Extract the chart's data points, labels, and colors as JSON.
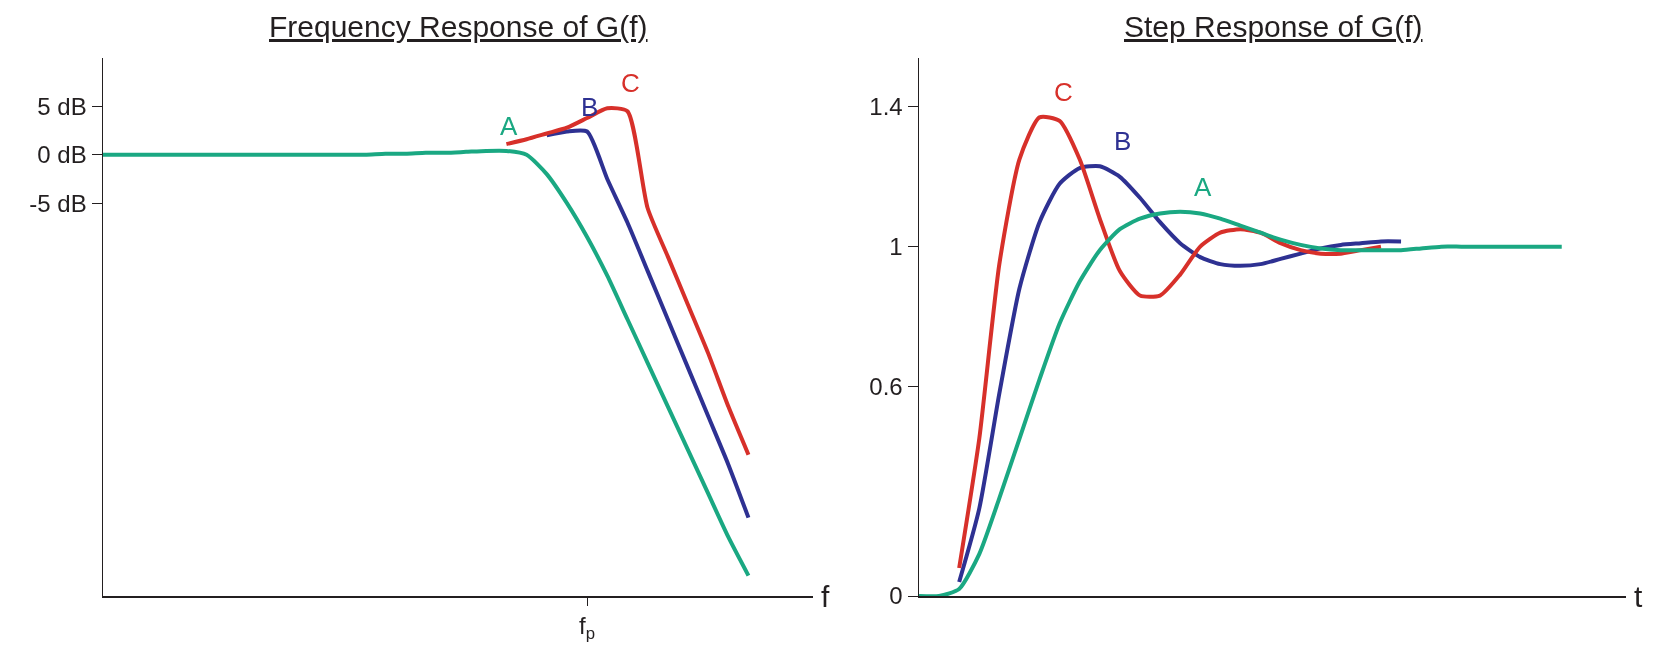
{
  "chart_data": [
    {
      "type": "line",
      "title": "Frequency Response of G(f)",
      "xlabel": "f",
      "categories": [
        null,
        null,
        null,
        null,
        null,
        null,
        null,
        null,
        null,
        null,
        null,
        null,
        null,
        null,
        null,
        null,
        null,
        null,
        null,
        null,
        null,
        null,
        null,
        null,
        "f$_{p}$",
        null,
        null,
        null,
        null,
        null,
        null,
        null,
        null
      ],
      "ylim": [
        -45.6,
        10
      ],
      "yticks": [
        {
          "value": 5,
          "label": "5 dB"
        },
        {
          "value": 0,
          "label": "0 dB"
        },
        {
          "value": -5,
          "label": "-5 dB"
        }
      ],
      "grid": false,
      "legend": false,
      "series": [
        {
          "name": "B",
          "color": "#2e3192",
          "values": [
            null,
            null,
            null,
            null,
            null,
            null,
            null,
            null,
            null,
            null,
            null,
            null,
            null,
            null,
            null,
            null,
            null,
            null,
            null,
            null,
            null,
            null,
            2,
            2.4,
            2.4,
            -2.5,
            -7,
            -12,
            -17,
            -22,
            -27,
            -32,
            -37.5
          ]
        },
        {
          "name": "C",
          "color": "#d7302a",
          "values": [
            null,
            null,
            null,
            null,
            null,
            null,
            null,
            null,
            null,
            null,
            null,
            null,
            null,
            null,
            null,
            null,
            null,
            null,
            null,
            null,
            1.1,
            1.6,
            2.2,
            2.8,
            3.8,
            4.8,
            4.5,
            -5.5,
            -10.5,
            -15.5,
            -20.5,
            -26,
            -31
          ]
        },
        {
          "name": "A",
          "color": "#1aa882",
          "values": [
            0,
            0,
            0,
            0,
            0,
            0,
            0,
            0,
            0,
            0,
            0,
            0,
            0,
            0,
            0.1,
            0.1,
            0.2,
            0.2,
            0.3,
            0.4,
            0.4,
            0,
            -2,
            -5,
            -8.5,
            -12.5,
            -17,
            -21.5,
            -26,
            -30.5,
            -35,
            -39.5,
            -43.5
          ]
        }
      ]
    },
    {
      "type": "line",
      "title": "Step Response of G(f)",
      "xlabel": "t",
      "categories": [
        null,
        null,
        null,
        null,
        null,
        null,
        null,
        null,
        null,
        null,
        null,
        null,
        null,
        null,
        null,
        null,
        null,
        null,
        null,
        null,
        null,
        null,
        null,
        null,
        null,
        null,
        null,
        null,
        null,
        null,
        null,
        null,
        null
      ],
      "ylim": [
        0,
        1.54
      ],
      "yticks": [
        0,
        0.6,
        1,
        1.4
      ],
      "grid": false,
      "legend": false,
      "series": [
        {
          "name": "B",
          "color": "#2e3192",
          "values": [
            null,
            null,
            0.04,
            0.25,
            0.58,
            0.88,
            1.07,
            1.18,
            1.225,
            1.23,
            1.2,
            1.14,
            1.07,
            1.01,
            0.97,
            0.95,
            0.945,
            0.95,
            0.965,
            0.98,
            0.995,
            1.005,
            1.01,
            1.015,
            1.015,
            null,
            null,
            null,
            null,
            null,
            null,
            null,
            null
          ]
        },
        {
          "name": "C",
          "color": "#d7302a",
          "values": [
            null,
            null,
            0.08,
            0.45,
            0.95,
            1.25,
            1.37,
            1.36,
            1.25,
            1.08,
            0.93,
            0.86,
            0.86,
            0.92,
            1,
            1.04,
            1.05,
            1.04,
            1.01,
            0.99,
            0.98,
            0.98,
            0.99,
            1,
            null,
            null,
            null,
            null,
            null,
            null,
            null,
            null,
            null
          ]
        },
        {
          "name": "A",
          "color": "#1aa882",
          "values": [
            0,
            0,
            0.02,
            0.12,
            0.28,
            0.45,
            0.62,
            0.78,
            0.9,
            0.99,
            1.05,
            1.08,
            1.095,
            1.1,
            1.095,
            1.08,
            1.06,
            1.04,
            1.02,
            1.005,
            0.995,
            0.99,
            0.99,
            0.99,
            0.99,
            0.995,
            1,
            1,
            1,
            1,
            1,
            1,
            1
          ]
        }
      ]
    }
  ]
}
